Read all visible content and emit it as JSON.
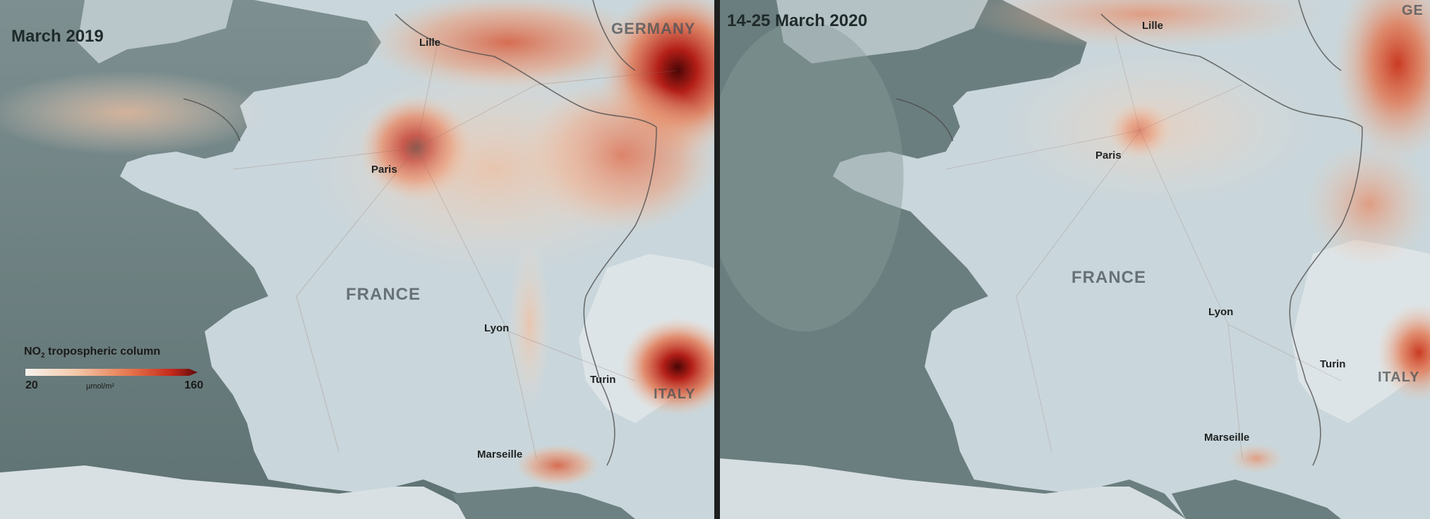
{
  "panels": [
    {
      "title": "March 2019",
      "places": {
        "lille": "Lille",
        "paris": "Paris",
        "lyon": "Lyon",
        "turin": "Turin",
        "marseille": "Marseille"
      },
      "countries": {
        "france": "FRANCE",
        "germany": "GERMANY",
        "italy": "ITALY"
      }
    },
    {
      "title": "14-25 March 2020",
      "places": {
        "lille": "Lille",
        "paris": "Paris",
        "lyon": "Lyon",
        "turin": "Turin",
        "marseille": "Marseille"
      },
      "countries": {
        "france": "FRANCE",
        "germany_partial": "GE",
        "italy": "ITALY"
      }
    }
  ],
  "legend": {
    "title_prefix": "NO",
    "title_subscript": "2",
    "title_suffix": " tropospheric column",
    "min": "20",
    "max": "160",
    "unit": "µmol/m²",
    "colors": [
      "#f6f3ee",
      "#f3c7a7",
      "#e6774f",
      "#c4291c",
      "#5d0a0a"
    ]
  },
  "colors": {
    "sea": "#6e8182",
    "land": "#c9d6db",
    "pollution_low": "#f0c6a8",
    "pollution_mid": "#e2754f",
    "pollution_high": "#a11a14",
    "border": "#4a4a4a"
  }
}
